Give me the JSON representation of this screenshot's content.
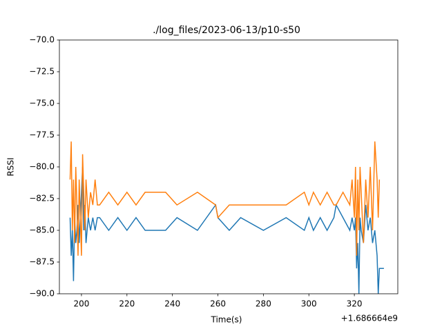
{
  "chart_data": {
    "type": "line",
    "title": "./log_files/2023-06-13/p10-s50",
    "x_label": "Time(s)",
    "y_label": "RSSI",
    "x_offset_label": "+1.686664e9",
    "x": [
      195,
      195.5,
      196,
      196.5,
      197,
      197.5,
      198,
      198.5,
      199,
      199.5,
      200,
      200.5,
      201,
      201.5,
      202,
      203,
      204,
      205,
      206,
      207,
      208,
      212,
      216,
      220,
      224,
      228,
      237,
      242,
      251,
      259,
      260,
      265,
      270,
      280,
      290,
      298,
      300,
      302,
      305,
      308,
      311,
      312,
      315,
      318,
      319,
      320,
      320.5,
      321,
      321.5,
      322,
      322.5,
      323,
      324,
      325,
      326,
      327,
      328,
      329,
      330,
      330.5,
      331,
      332,
      333
    ],
    "series": [
      {
        "color": "#1f77b4",
        "values": [
          -84,
          -87,
          -85,
          -89,
          -84,
          -86,
          -85,
          -83,
          -86,
          -84,
          -82,
          -80,
          -85,
          -83,
          -86,
          -84,
          -85,
          -84,
          -85,
          -84,
          -84,
          -85,
          -84,
          -85,
          -84,
          -85,
          -85,
          -84,
          -85,
          -83,
          -84,
          -85,
          -84,
          -85,
          -84,
          -85,
          -84,
          -85,
          -84,
          -85,
          -84,
          -83,
          -84,
          -85,
          -84,
          -85,
          -84,
          -88,
          -86,
          -90,
          -84,
          -85,
          -86,
          -83,
          -85,
          -84,
          -86,
          -85,
          -87,
          -90,
          -88,
          -88,
          -88
        ]
      },
      {
        "color": "#ff7f0e",
        "values": [
          -81,
          -78,
          -85,
          -81,
          -86,
          -80,
          -83,
          -87,
          -81,
          -84,
          -87,
          -79,
          -82,
          -85,
          -81,
          -84,
          -82,
          -83,
          -81,
          -83,
          -83,
          -82,
          -83,
          -82,
          -83,
          -82,
          -82,
          -83,
          -82,
          -83,
          -84,
          -83,
          -83,
          -83,
          -83,
          -82,
          -83,
          -82,
          -83,
          -82,
          -83,
          -83,
          -82,
          -83,
          -81,
          -84,
          -80,
          -87,
          -81,
          -85,
          -80,
          -82,
          -86,
          -81,
          -84,
          -80,
          -85,
          -78,
          -81,
          -84,
          -81,
          null,
          null
        ]
      }
    ],
    "xlim": [
      190.3,
      339.1
    ],
    "ylim": [
      -90,
      -70
    ],
    "xticks": [
      200,
      220,
      240,
      260,
      280,
      300,
      320
    ],
    "yticks": [
      {
        "value": -90,
        "label": "−90.0"
      },
      {
        "value": -87.5,
        "label": "−87.5"
      },
      {
        "value": -85,
        "label": "−85.0"
      },
      {
        "value": -82.5,
        "label": "−82.5"
      },
      {
        "value": -80,
        "label": "−80.0"
      },
      {
        "value": -77.5,
        "label": "−77.5"
      },
      {
        "value": -75,
        "label": "−75.0"
      },
      {
        "value": -72.5,
        "label": "−72.5"
      },
      {
        "value": -70,
        "label": "−70.0"
      }
    ]
  }
}
